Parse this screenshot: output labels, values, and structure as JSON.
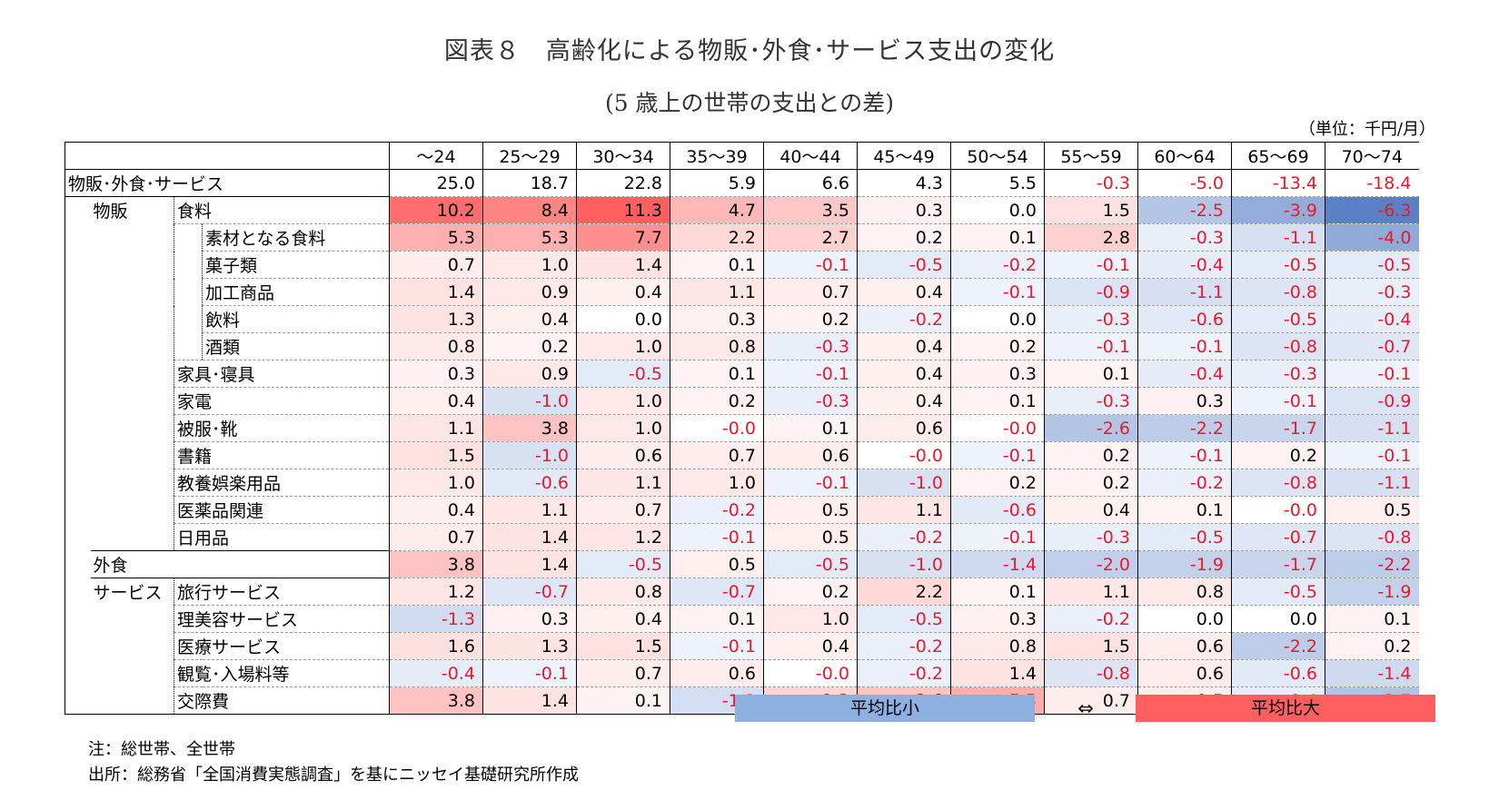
{
  "title": "図表８　高齢化による物販･外食･サービス支出の変化",
  "subtitle": "(5 歳上の世帯の支出との差)",
  "unit": "（単位：千円/月）",
  "legend": {
    "small_label": "平均比小",
    "arrow": "⇔",
    "large_label": "平均比大",
    "small_color": "#8eb0e0",
    "large_color": "#ff5f5f"
  },
  "notes": [
    "注：総世帯、全世帯",
    "出所：総務省「全国消費実態調査」を基にニッセイ基礎研究所作成"
  ],
  "chart_data": {
    "type": "table",
    "columns": [
      "～24",
      "25～29",
      "30～34",
      "35～39",
      "40～44",
      "45～49",
      "50～54",
      "55～59",
      "60～64",
      "65～69",
      "70～74"
    ],
    "rows": [
      {
        "group": "物販･外食･サービス",
        "sub": "",
        "item": "",
        "values": [
          25.0,
          18.7,
          22.8,
          5.9,
          6.6,
          4.3,
          5.5,
          -0.3,
          -5.0,
          -13.4,
          -18.4
        ]
      },
      {
        "group": "物販",
        "sub": "食料",
        "item": "",
        "values": [
          10.2,
          8.4,
          11.3,
          4.7,
          3.5,
          0.3,
          0.0,
          1.5,
          -2.5,
          -3.9,
          -6.3
        ]
      },
      {
        "group": "",
        "sub": "",
        "item": "素材となる食料",
        "values": [
          5.3,
          5.3,
          7.7,
          2.2,
          2.7,
          0.2,
          0.1,
          2.8,
          -0.3,
          -1.1,
          -4.0
        ]
      },
      {
        "group": "",
        "sub": "",
        "item": "菓子類",
        "values": [
          0.7,
          1.0,
          1.4,
          0.1,
          -0.1,
          -0.5,
          -0.2,
          -0.1,
          -0.4,
          -0.5,
          -0.5
        ]
      },
      {
        "group": "",
        "sub": "",
        "item": "加工商品",
        "values": [
          1.4,
          0.9,
          0.4,
          1.1,
          0.7,
          0.4,
          -0.1,
          -0.9,
          -1.1,
          -0.8,
          -0.3
        ]
      },
      {
        "group": "",
        "sub": "",
        "item": "飲料",
        "values": [
          1.3,
          0.4,
          0.0,
          0.3,
          0.2,
          -0.2,
          0.0,
          -0.3,
          -0.6,
          -0.5,
          -0.4
        ]
      },
      {
        "group": "",
        "sub": "",
        "item": "酒類",
        "values": [
          0.8,
          0.2,
          1.0,
          0.8,
          -0.3,
          0.4,
          0.2,
          -0.1,
          -0.1,
          -0.8,
          -0.7
        ]
      },
      {
        "group": "",
        "sub": "家具･寝具",
        "item": "",
        "values": [
          0.3,
          0.9,
          -0.5,
          0.1,
          -0.1,
          0.4,
          0.3,
          0.1,
          -0.4,
          -0.3,
          -0.1
        ]
      },
      {
        "group": "",
        "sub": "家電",
        "item": "",
        "values": [
          0.4,
          -1.0,
          1.0,
          0.2,
          -0.3,
          0.4,
          0.1,
          -0.3,
          0.3,
          -0.1,
          -0.9
        ]
      },
      {
        "group": "",
        "sub": "被服･靴",
        "item": "",
        "values": [
          1.1,
          3.8,
          1.0,
          -0.0,
          0.1,
          0.6,
          -0.0,
          -2.6,
          -2.2,
          -1.7,
          -1.1
        ]
      },
      {
        "group": "",
        "sub": "書籍",
        "item": "",
        "values": [
          1.5,
          -1.0,
          0.6,
          0.7,
          0.6,
          -0.0,
          -0.1,
          0.2,
          -0.1,
          0.2,
          -0.1
        ]
      },
      {
        "group": "",
        "sub": "教養娯楽用品",
        "item": "",
        "values": [
          1.0,
          -0.6,
          1.1,
          1.0,
          -0.1,
          -1.0,
          0.2,
          0.2,
          -0.2,
          -0.8,
          -1.1
        ]
      },
      {
        "group": "",
        "sub": "医薬品関連",
        "item": "",
        "values": [
          0.4,
          1.1,
          0.7,
          -0.2,
          0.5,
          1.1,
          -0.6,
          0.4,
          0.1,
          -0.0,
          0.5
        ]
      },
      {
        "group": "",
        "sub": "日用品",
        "item": "",
        "values": [
          0.7,
          1.4,
          1.2,
          -0.1,
          0.5,
          -0.2,
          -0.1,
          -0.3,
          -0.5,
          -0.7,
          -0.8
        ]
      },
      {
        "group": "外食",
        "sub": "",
        "item": "",
        "values": [
          3.8,
          1.4,
          -0.5,
          0.5,
          -0.5,
          -1.0,
          -1.4,
          -2.0,
          -1.9,
          -1.7,
          -2.2
        ]
      },
      {
        "group": "サービス",
        "sub": "旅行サービス",
        "item": "",
        "values": [
          1.2,
          -0.7,
          0.8,
          -0.7,
          0.2,
          2.2,
          0.1,
          1.1,
          0.8,
          -0.5,
          -1.9
        ]
      },
      {
        "group": "",
        "sub": "理美容サービス",
        "item": "",
        "values": [
          -1.3,
          0.3,
          0.4,
          0.1,
          1.0,
          -0.5,
          0.3,
          -0.2,
          0.0,
          0.0,
          0.1
        ]
      },
      {
        "group": "",
        "sub": "医療サービス",
        "item": "",
        "values": [
          1.6,
          1.3,
          1.5,
          -0.1,
          0.4,
          -0.2,
          0.8,
          1.5,
          0.6,
          -2.2,
          0.2
        ]
      },
      {
        "group": "",
        "sub": "観覧･入場料等",
        "item": "",
        "values": [
          -0.4,
          -0.1,
          0.7,
          0.6,
          -0.0,
          -0.2,
          1.4,
          -0.8,
          0.6,
          -0.6,
          -1.4
        ]
      },
      {
        "group": "",
        "sub": "交際費",
        "item": "",
        "values": [
          3.8,
          1.4,
          0.1,
          -1.2,
          2.3,
          3.6,
          5.5,
          0.7,
          0.5,
          -0.4,
          -2.7
        ]
      }
    ]
  }
}
